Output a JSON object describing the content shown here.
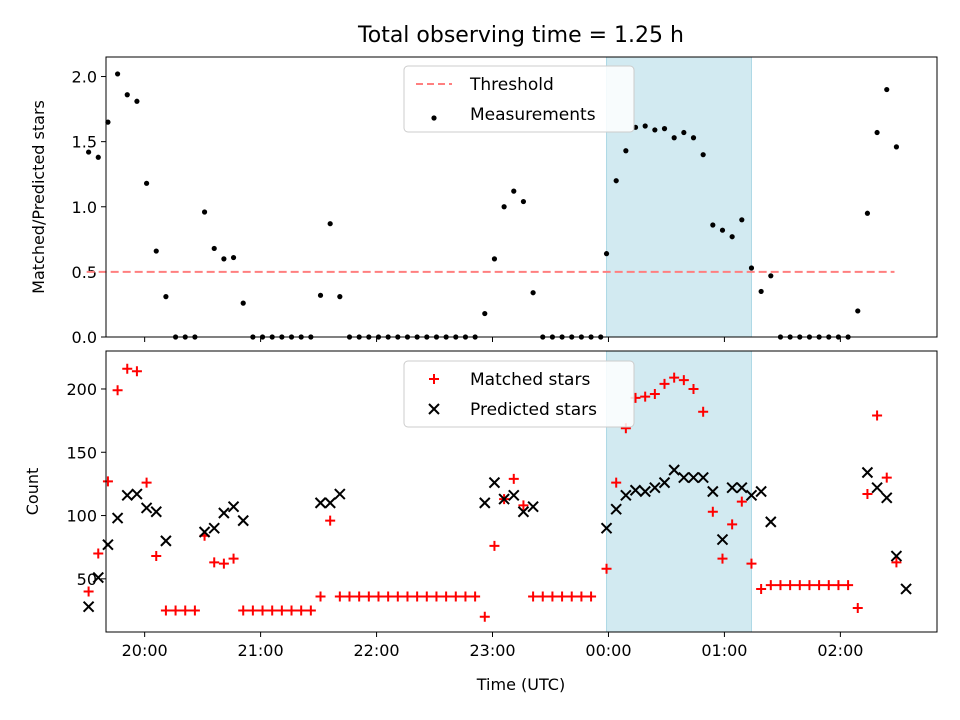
{
  "title": "Total observing time = 1.25 h",
  "xlabel": "Time (UTC)",
  "highlight_color": "#add8e6",
  "chart_data": [
    {
      "type": "scatter",
      "ylabel": "Matched/Predicted stars",
      "ylim": [
        0,
        2.15
      ],
      "yticks": [
        "0.0",
        "0.5",
        "1.0",
        "1.5",
        "2.0"
      ],
      "highlight_span": [
        "23:59",
        "01:14"
      ],
      "legend": [
        "Threshold",
        "Measurements"
      ],
      "legend_position": "upper center",
      "threshold": {
        "name": "Threshold",
        "value": 0.5,
        "x_range": [
          "19:30",
          "02:28"
        ],
        "color": "#ff7f7f"
      },
      "series": [
        {
          "name": "Measurements",
          "color": "#000000",
          "points": [
            [
              "19:31",
              1.42
            ],
            [
              "19:36",
              1.38
            ],
            [
              "19:41",
              1.65
            ],
            [
              "19:46",
              2.02
            ],
            [
              "19:51",
              1.86
            ],
            [
              "19:56",
              1.81
            ],
            [
              "20:01",
              1.18
            ],
            [
              "20:06",
              0.66
            ],
            [
              "20:11",
              0.31
            ],
            [
              "20:16",
              0
            ],
            [
              "20:21",
              0
            ],
            [
              "20:26",
              0
            ],
            [
              "20:31",
              0.96
            ],
            [
              "20:36",
              0.68
            ],
            [
              "20:41",
              0.6
            ],
            [
              "20:46",
              0.61
            ],
            [
              "20:51",
              0.26
            ],
            [
              "20:56",
              0
            ],
            [
              "21:01",
              0
            ],
            [
              "21:06",
              0
            ],
            [
              "21:11",
              0
            ],
            [
              "21:16",
              0
            ],
            [
              "21:21",
              0
            ],
            [
              "21:26",
              0
            ],
            [
              "21:31",
              0.32
            ],
            [
              "21:36",
              0.87
            ],
            [
              "21:41",
              0.31
            ],
            [
              "21:46",
              0
            ],
            [
              "21:51",
              0
            ],
            [
              "21:56",
              0
            ],
            [
              "22:01",
              0
            ],
            [
              "22:06",
              0
            ],
            [
              "22:11",
              0
            ],
            [
              "22:16",
              0
            ],
            [
              "22:21",
              0
            ],
            [
              "22:26",
              0
            ],
            [
              "22:31",
              0
            ],
            [
              "22:36",
              0
            ],
            [
              "22:41",
              0
            ],
            [
              "22:46",
              0
            ],
            [
              "22:51",
              0
            ],
            [
              "22:56",
              0.18
            ],
            [
              "23:01",
              0.6
            ],
            [
              "23:06",
              1.0
            ],
            [
              "23:11",
              1.12
            ],
            [
              "23:16",
              1.04
            ],
            [
              "23:21",
              0.34
            ],
            [
              "23:26",
              0
            ],
            [
              "23:31",
              0
            ],
            [
              "23:36",
              0
            ],
            [
              "23:41",
              0
            ],
            [
              "23:46",
              0
            ],
            [
              "23:51",
              0
            ],
            [
              "23:56",
              0
            ],
            [
              "23:59",
              0.64
            ],
            [
              "00:04",
              1.2
            ],
            [
              "00:09",
              1.43
            ],
            [
              "00:14",
              1.61
            ],
            [
              "00:19",
              1.62
            ],
            [
              "00:24",
              1.59
            ],
            [
              "00:29",
              1.6
            ],
            [
              "00:34",
              1.53
            ],
            [
              "00:39",
              1.57
            ],
            [
              "00:44",
              1.53
            ],
            [
              "00:49",
              1.4
            ],
            [
              "00:54",
              0.86
            ],
            [
              "00:59",
              0.82
            ],
            [
              "01:04",
              0.77
            ],
            [
              "01:09",
              0.9
            ],
            [
              "01:14",
              0.53
            ],
            [
              "01:19",
              0.35
            ],
            [
              "01:24",
              0.47
            ],
            [
              "01:29",
              0
            ],
            [
              "01:34",
              0
            ],
            [
              "01:39",
              0
            ],
            [
              "01:44",
              0
            ],
            [
              "01:49",
              0
            ],
            [
              "01:54",
              0
            ],
            [
              "01:59",
              0
            ],
            [
              "02:04",
              0
            ],
            [
              "02:09",
              0.2
            ],
            [
              "02:14",
              0.95
            ],
            [
              "02:19",
              1.57
            ],
            [
              "02:24",
              1.9
            ],
            [
              "02:29",
              1.46
            ]
          ]
        }
      ]
    },
    {
      "type": "scatter",
      "ylabel": "Count",
      "ylim": [
        8,
        230
      ],
      "yticks": [
        "50",
        "100",
        "150",
        "200"
      ],
      "xticks": [
        "20:00",
        "21:00",
        "22:00",
        "23:00",
        "00:00",
        "01:00",
        "02:00"
      ],
      "highlight_span": [
        "23:59",
        "01:14"
      ],
      "legend": [
        "Matched stars",
        "Predicted stars"
      ],
      "legend_position": "upper center",
      "series": [
        {
          "name": "Matched stars",
          "marker": "+",
          "color": "#ff0000",
          "points": [
            [
              "19:31",
              40
            ],
            [
              "19:36",
              70
            ],
            [
              "19:41",
              127
            ],
            [
              "19:46",
              199
            ],
            [
              "19:51",
              216
            ],
            [
              "19:56",
              214
            ],
            [
              "20:01",
              126
            ],
            [
              "20:06",
              68
            ],
            [
              "20:11",
              25
            ],
            [
              "20:16",
              25
            ],
            [
              "20:21",
              25
            ],
            [
              "20:26",
              25
            ],
            [
              "20:31",
              84
            ],
            [
              "20:36",
              63
            ],
            [
              "20:41",
              62
            ],
            [
              "20:46",
              66
            ],
            [
              "20:51",
              25
            ],
            [
              "20:56",
              25
            ],
            [
              "21:01",
              25
            ],
            [
              "21:06",
              25
            ],
            [
              "21:11",
              25
            ],
            [
              "21:16",
              25
            ],
            [
              "21:21",
              25
            ],
            [
              "21:26",
              25
            ],
            [
              "21:31",
              36
            ],
            [
              "21:36",
              96
            ],
            [
              "21:41",
              36
            ],
            [
              "21:46",
              36
            ],
            [
              "21:51",
              36
            ],
            [
              "21:56",
              36
            ],
            [
              "22:01",
              36
            ],
            [
              "22:06",
              36
            ],
            [
              "22:11",
              36
            ],
            [
              "22:16",
              36
            ],
            [
              "22:21",
              36
            ],
            [
              "22:26",
              36
            ],
            [
              "22:31",
              36
            ],
            [
              "22:36",
              36
            ],
            [
              "22:41",
              36
            ],
            [
              "22:46",
              36
            ],
            [
              "22:51",
              36
            ],
            [
              "22:56",
              20
            ],
            [
              "23:01",
              76
            ],
            [
              "23:06",
              113
            ],
            [
              "23:11",
              129
            ],
            [
              "23:16",
              108
            ],
            [
              "23:21",
              36
            ],
            [
              "23:26",
              36
            ],
            [
              "23:31",
              36
            ],
            [
              "23:36",
              36
            ],
            [
              "23:41",
              36
            ],
            [
              "23:46",
              36
            ],
            [
              "23:51",
              36
            ],
            [
              "23:59",
              58
            ],
            [
              "00:04",
              126
            ],
            [
              "00:09",
              169
            ],
            [
              "00:14",
              193
            ],
            [
              "00:19",
              194
            ],
            [
              "00:24",
              196
            ],
            [
              "00:29",
              204
            ],
            [
              "00:34",
              209
            ],
            [
              "00:39",
              207
            ],
            [
              "00:44",
              200
            ],
            [
              "00:49",
              182
            ],
            [
              "00:54",
              103
            ],
            [
              "00:59",
              66
            ],
            [
              "01:04",
              93
            ],
            [
              "01:09",
              111
            ],
            [
              "01:14",
              62
            ],
            [
              "01:19",
              42
            ],
            [
              "01:24",
              45
            ],
            [
              "01:29",
              45
            ],
            [
              "01:34",
              45
            ],
            [
              "01:39",
              45
            ],
            [
              "01:44",
              45
            ],
            [
              "01:49",
              45
            ],
            [
              "01:54",
              45
            ],
            [
              "01:59",
              45
            ],
            [
              "02:04",
              45
            ],
            [
              "02:09",
              27
            ],
            [
              "02:14",
              117
            ],
            [
              "02:19",
              179
            ],
            [
              "02:24",
              130
            ],
            [
              "02:29",
              63
            ]
          ]
        },
        {
          "name": "Predicted stars",
          "marker": "x",
          "color": "#000000",
          "points": [
            [
              "19:31",
              28
            ],
            [
              "19:36",
              51
            ],
            [
              "19:41",
              77
            ],
            [
              "19:46",
              98
            ],
            [
              "19:51",
              116
            ],
            [
              "19:56",
              117
            ],
            [
              "20:01",
              106
            ],
            [
              "20:06",
              103
            ],
            [
              "20:11",
              80
            ],
            [
              "20:31",
              87
            ],
            [
              "20:36",
              90
            ],
            [
              "20:41",
              102
            ],
            [
              "20:46",
              107
            ],
            [
              "20:51",
              96
            ],
            [
              "21:31",
              110
            ],
            [
              "21:36",
              110
            ],
            [
              "21:41",
              117
            ],
            [
              "22:56",
              110
            ],
            [
              "23:01",
              126
            ],
            [
              "23:06",
              113
            ],
            [
              "23:11",
              116
            ],
            [
              "23:16",
              103
            ],
            [
              "23:21",
              107
            ],
            [
              "23:59",
              90
            ],
            [
              "00:04",
              105
            ],
            [
              "00:09",
              116
            ],
            [
              "00:14",
              120
            ],
            [
              "00:19",
              119
            ],
            [
              "00:24",
              122
            ],
            [
              "00:29",
              126
            ],
            [
              "00:34",
              136
            ],
            [
              "00:39",
              130
            ],
            [
              "00:44",
              130
            ],
            [
              "00:49",
              130
            ],
            [
              "00:54",
              119
            ],
            [
              "00:59",
              81
            ],
            [
              "01:04",
              122
            ],
            [
              "01:09",
              122
            ],
            [
              "01:14",
              116
            ],
            [
              "01:19",
              119
            ],
            [
              "01:24",
              95
            ],
            [
              "02:14",
              134
            ],
            [
              "02:19",
              122
            ],
            [
              "02:24",
              114
            ],
            [
              "02:29",
              68
            ],
            [
              "02:34",
              42
            ]
          ]
        }
      ]
    }
  ]
}
